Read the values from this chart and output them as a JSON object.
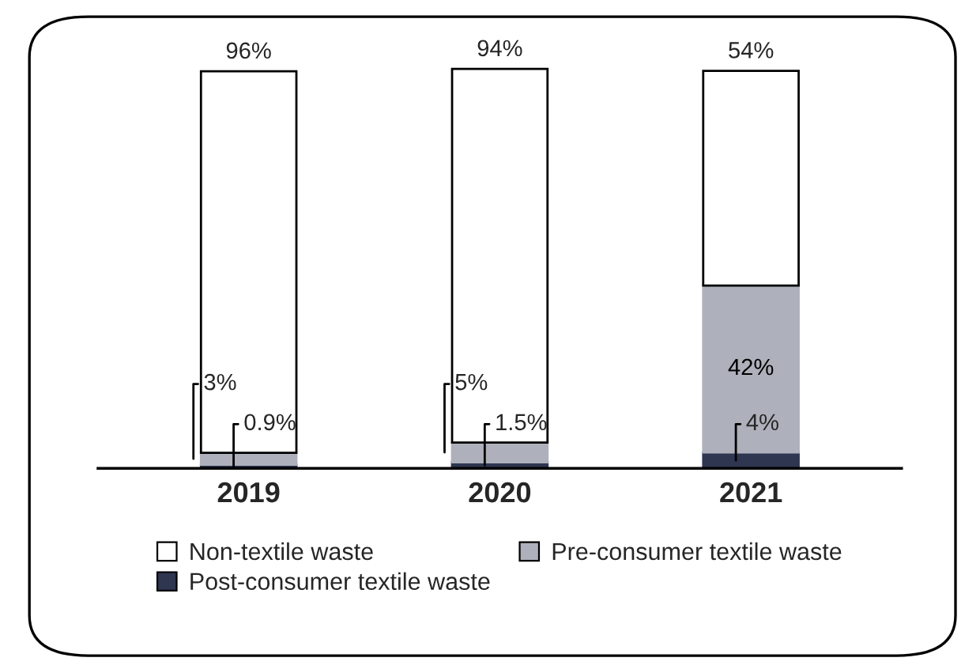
{
  "chart_data": {
    "type": "bar",
    "stacked": true,
    "categories": [
      "2019",
      "2020",
      "2021"
    ],
    "series": [
      {
        "name": "Post-consumer textile waste",
        "color": "#2e3650",
        "values": [
          0.9,
          1.5,
          4
        ],
        "value_labels": [
          "0.9%",
          "1.5%",
          "4%"
        ]
      },
      {
        "name": "Pre-consumer textile waste",
        "color": "#aeb0bb",
        "values": [
          3,
          5,
          42
        ],
        "value_labels": [
          "3%",
          "5%",
          "42%"
        ]
      },
      {
        "name": "Non-textile waste",
        "color": "#ffffff",
        "values": [
          96,
          94,
          54
        ],
        "value_labels": [
          "96%",
          "94%",
          "54%"
        ]
      }
    ],
    "ylim": [
      0,
      101
    ],
    "tick_labels": "x",
    "grid": false,
    "legend": "bottom"
  }
}
